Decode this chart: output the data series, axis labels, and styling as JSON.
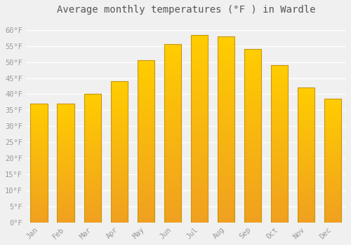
{
  "title": "Average monthly temperatures (°F ) in Wardle",
  "months": [
    "Jan",
    "Feb",
    "Mar",
    "Apr",
    "May",
    "Jun",
    "Jul",
    "Aug",
    "Sep",
    "Oct",
    "Nov",
    "Dec"
  ],
  "values": [
    37,
    37,
    40,
    44,
    50.5,
    55.5,
    58.5,
    58,
    54,
    49,
    42,
    38.5
  ],
  "bar_color_top": "#FFCC00",
  "bar_color_bottom": "#F0A020",
  "bar_edge_color": "#C8960A",
  "background_color": "#f0f0f0",
  "plot_bg_color": "#f0f0f0",
  "grid_color": "#ffffff",
  "ytick_labels": [
    "0°F",
    "5°F",
    "10°F",
    "15°F",
    "20°F",
    "25°F",
    "30°F",
    "35°F",
    "40°F",
    "45°F",
    "50°F",
    "55°F",
    "60°F"
  ],
  "ytick_values": [
    0,
    5,
    10,
    15,
    20,
    25,
    30,
    35,
    40,
    45,
    50,
    55,
    60
  ],
  "ylim": [
    0,
    63
  ],
  "title_fontsize": 10,
  "tick_fontsize": 7.5,
  "tick_color": "#999999",
  "title_color": "#555555",
  "bar_width": 0.65
}
